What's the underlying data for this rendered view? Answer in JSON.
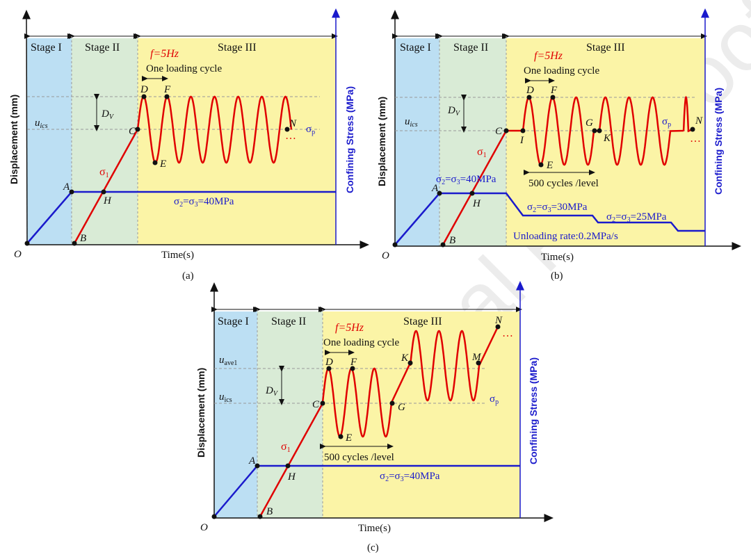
{
  "watermark": "Journal Pre-proof",
  "panels": [
    {
      "caption": "(a)",
      "stages": [
        "Stage I",
        "Stage II",
        "Stage III"
      ],
      "freq_label": "f=5Hz",
      "cycle_label": "One loading cycle",
      "y_label": "Displacement (mm)",
      "right_label": "Confining Stress (MPa)",
      "x_label": "Time(s)",
      "origin": "O",
      "u_label": "u_ics",
      "dv_label": "D_V",
      "sigma1": "σ1",
      "sigmap": "σp",
      "points": [
        "A",
        "B",
        "C",
        "D",
        "E",
        "F",
        "H",
        "N"
      ],
      "confining": [
        "σ2=σ3=40MPa"
      ],
      "dots": "…"
    },
    {
      "caption": "(b)",
      "stages": [
        "Stage I",
        "Stage II",
        "Stage III"
      ],
      "freq_label": "f=5Hz",
      "cycle_label": "One loading cycle",
      "y_label": "Displacement (mm)",
      "right_label": "Confining Stress (MPa)",
      "x_label": "Time(s)",
      "origin": "O",
      "u_label": "u_ics",
      "dv_label": "D_V",
      "sigma1": "σ1",
      "sigmap": "σp",
      "points": [
        "A",
        "B",
        "C",
        "D",
        "E",
        "F",
        "G",
        "H",
        "I",
        "K",
        "N"
      ],
      "confining": [
        "σ2=σ3=40MPa",
        "σ2=σ3=30MPa",
        "σ2=σ3=25MPa"
      ],
      "cycles_label": "500 cycles /level",
      "unload_label": "Unloading rate:0.2MPa/s",
      "dots": "…"
    },
    {
      "caption": "(c)",
      "stages": [
        "Stage I",
        "Stage II",
        "Stage III"
      ],
      "freq_label": "f=5Hz",
      "cycle_label": "One loading cycle",
      "y_label": "Displacement (mm)",
      "right_label": "Confining Stress (MPa)",
      "x_label": "Time(s)",
      "origin": "O",
      "u_label": "u_ics",
      "u_ave_label": "u_ave1",
      "dv_label": "D_V",
      "sigma1": "σ1",
      "sigmap": "σp",
      "points": [
        "A",
        "B",
        "C",
        "D",
        "E",
        "F",
        "G",
        "H",
        "K",
        "M",
        "N"
      ],
      "confining": [
        "σ2=σ3=40MPa"
      ],
      "cycles_label": "500 cycles /level",
      "dots": "…"
    }
  ]
}
